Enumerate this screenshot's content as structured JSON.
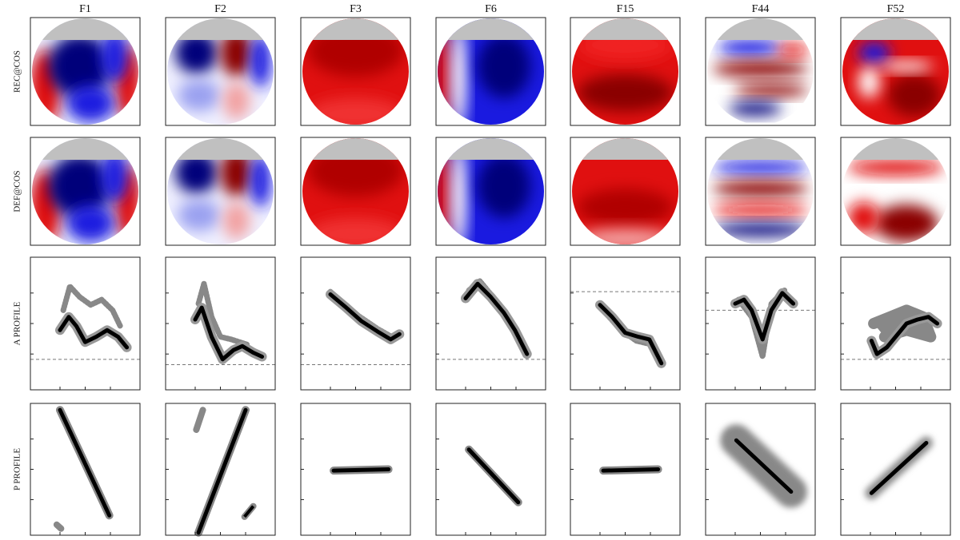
{
  "columns": [
    "F1",
    "F2",
    "F3",
    "F6",
    "F15",
    "F44",
    "F52"
  ],
  "rows": [
    "REC@COS",
    "DEF@COS",
    "A PROFILE",
    "P PROFILE"
  ]
}
